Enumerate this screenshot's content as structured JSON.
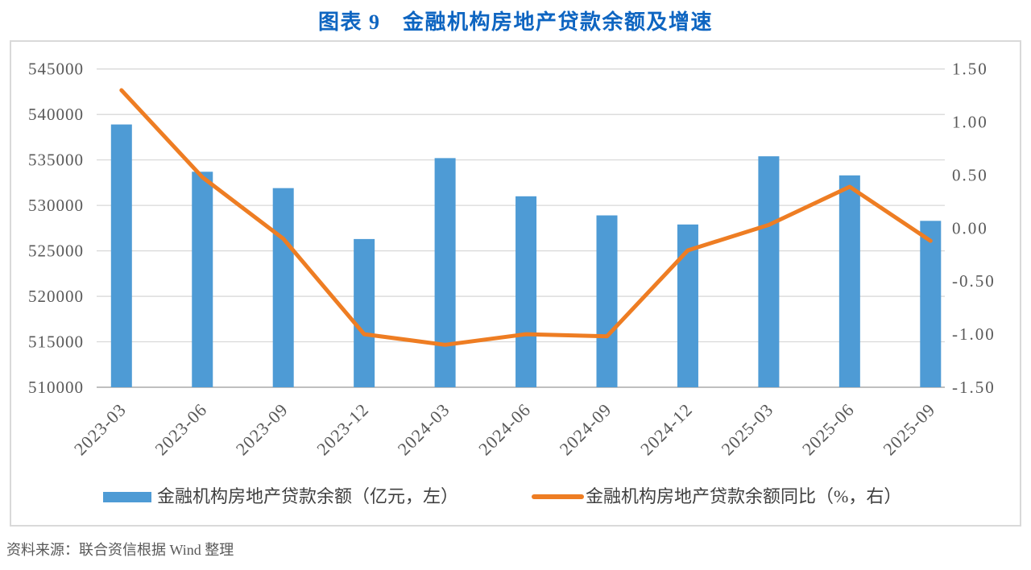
{
  "title": "图表 9　金融机构房地产贷款余额及增速",
  "source_note": "资料来源：联合资信根据 Wind 整理",
  "colors": {
    "bar": "#4e9bd5",
    "line": "#ee7d23",
    "grid": "#d9d9d9",
    "axis_line": "#bfbfbf",
    "axis_text": "#595959",
    "title_text": "#0e65c1",
    "frame_border": "#d9d9d9",
    "legend_text": "#3f3f3f",
    "source_text": "#595959"
  },
  "chart_data": {
    "type": "bar+line",
    "categories": [
      "2023-03",
      "2023-06",
      "2023-09",
      "2023-12",
      "2024-03",
      "2024-06",
      "2024-09",
      "2024-12",
      "2025-03",
      "2025-06",
      "2025-09"
    ],
    "series": [
      {
        "name": "金融机构房地产贷款余额（亿元，左）",
        "type": "bar",
        "axis": "left",
        "values": [
          538900,
          533700,
          531900,
          526300,
          535200,
          531000,
          528900,
          527900,
          535400,
          533300,
          528300
        ]
      },
      {
        "name": "金融机构房地产贷款余额同比（%，右）",
        "type": "line",
        "axis": "right",
        "values": [
          1.3,
          0.48,
          -0.1,
          -1.0,
          -1.1,
          -1.0,
          -1.02,
          -0.21,
          0.03,
          0.39,
          -0.12
        ]
      }
    ],
    "left_axis": {
      "min": 510000,
      "max": 545000,
      "step": 5000,
      "tick_labels": [
        "510000",
        "515000",
        "520000",
        "525000",
        "530000",
        "535000",
        "540000",
        "545000"
      ]
    },
    "right_axis": {
      "min": -1.5,
      "max": 1.5,
      "step": 0.5,
      "tick_labels": [
        "-1.50",
        "-1.00",
        "-0.50",
        "0.00",
        "0.50",
        "1.00",
        "1.50"
      ]
    },
    "grid": true,
    "legend_position": "bottom"
  }
}
